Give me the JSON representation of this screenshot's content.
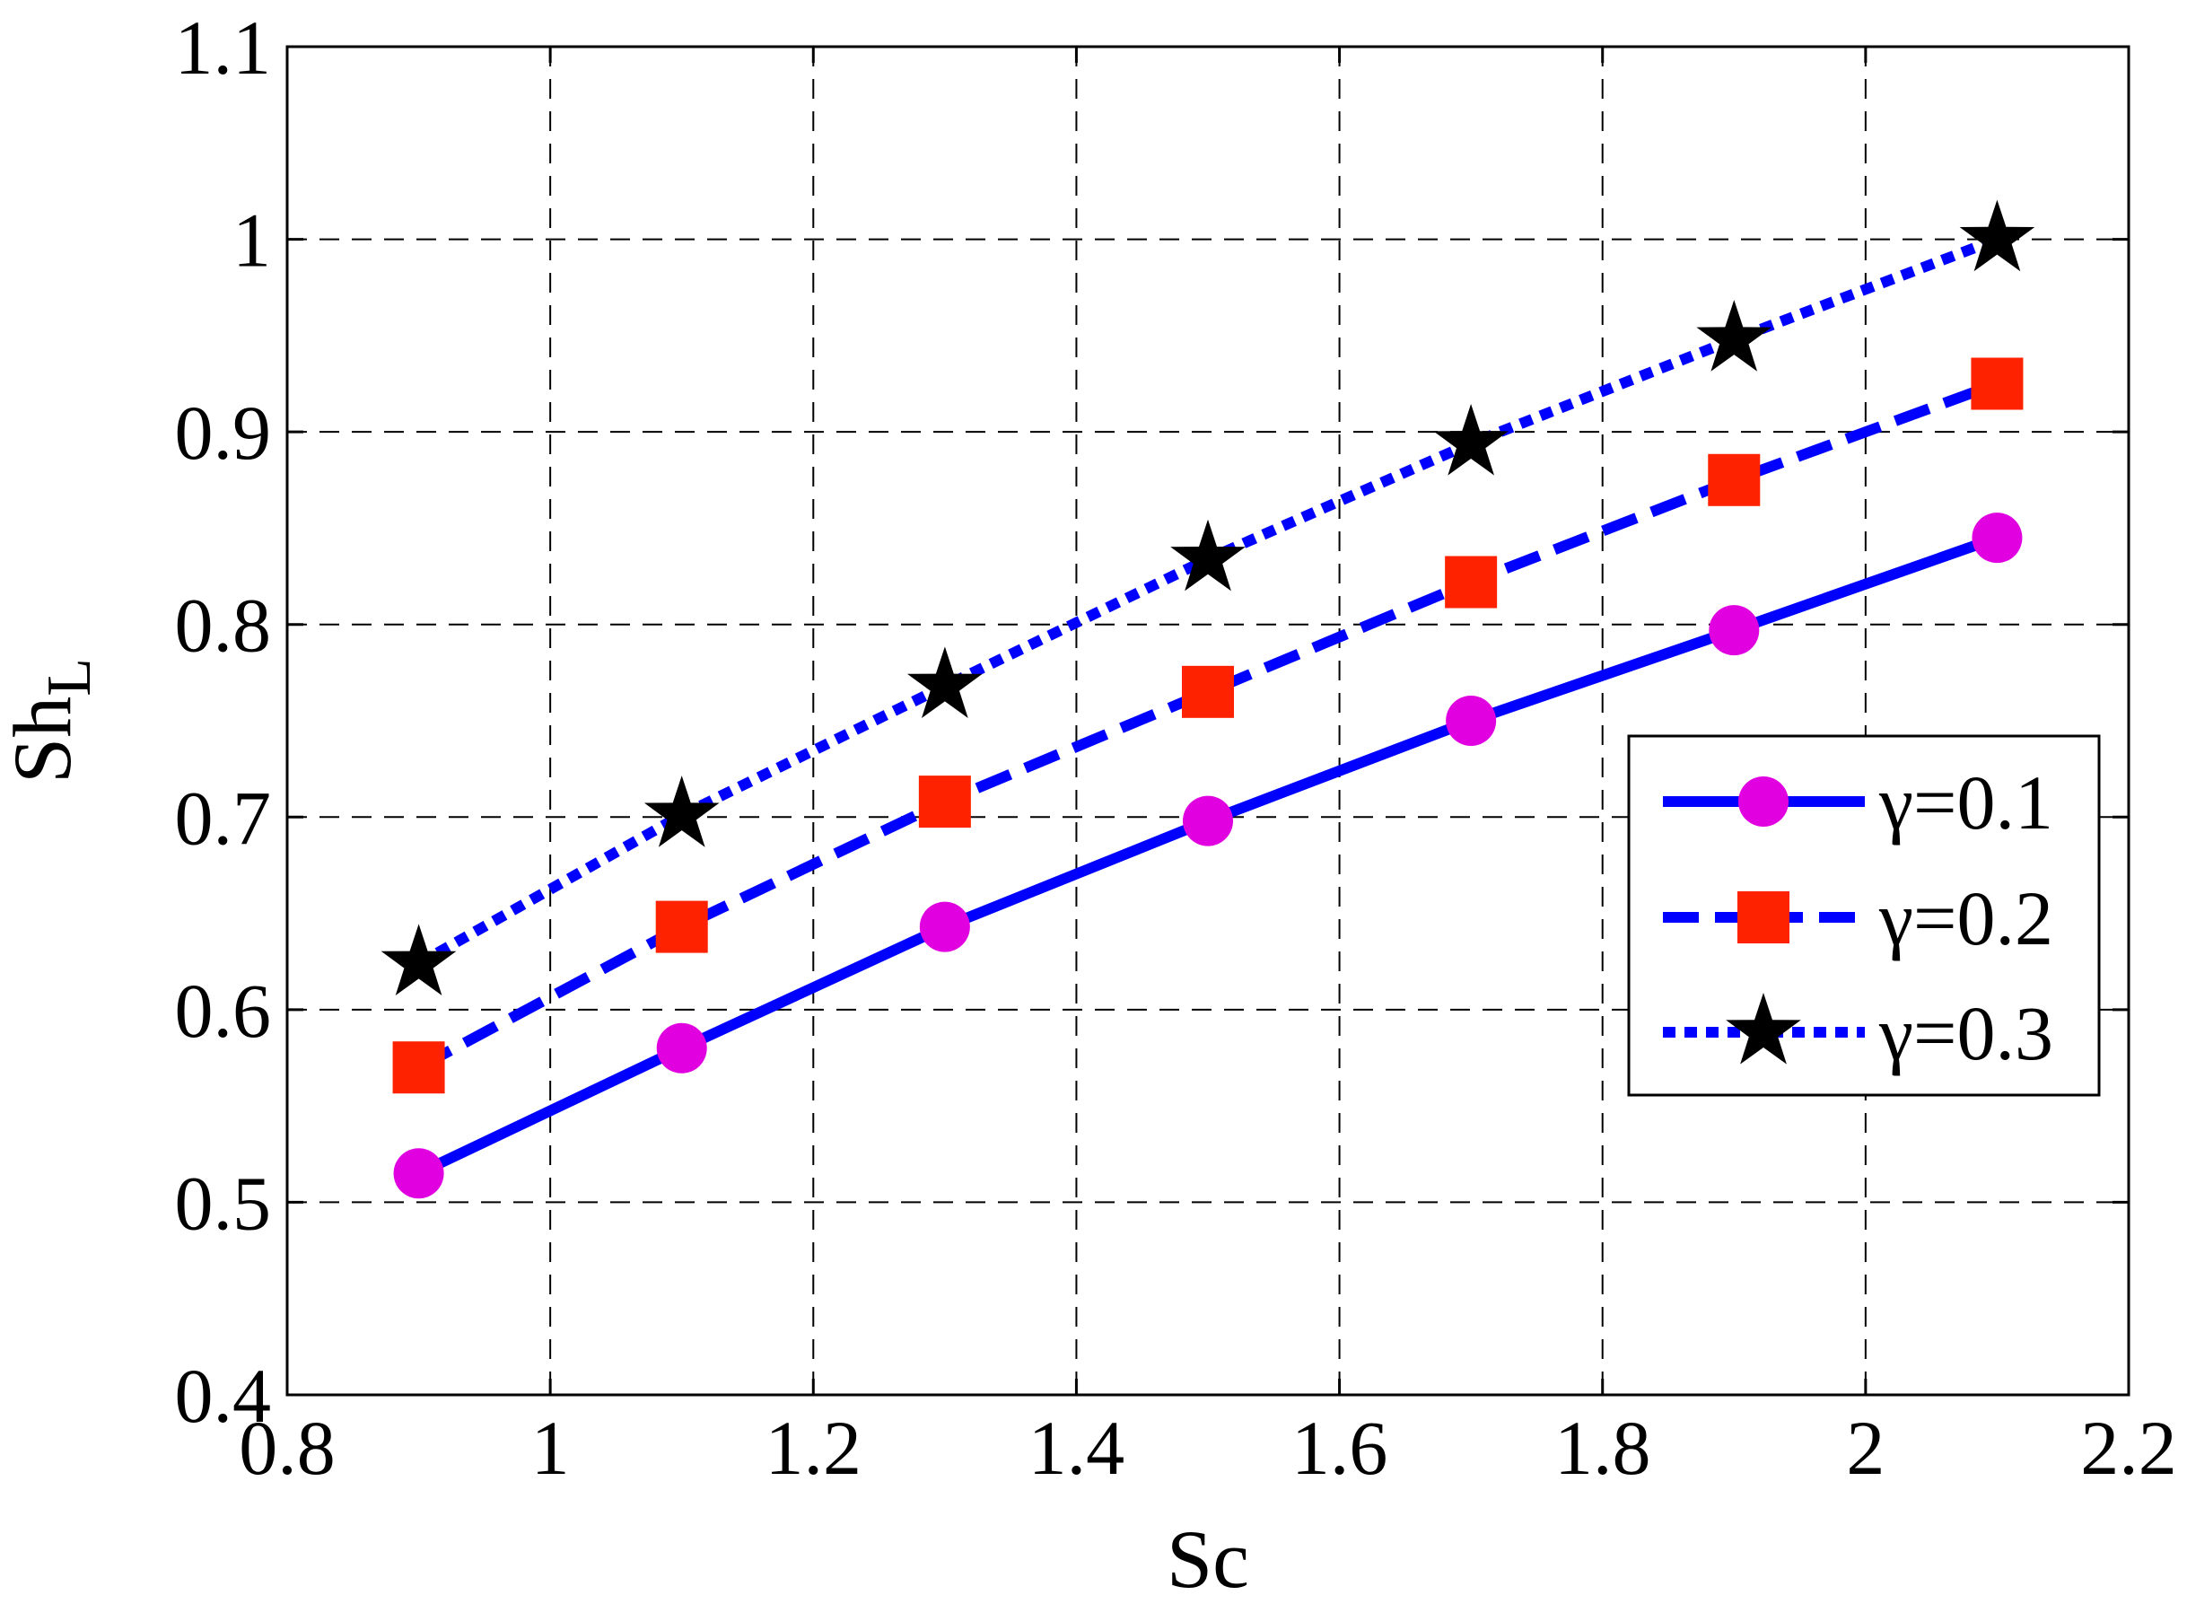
{
  "chart_data": {
    "type": "line",
    "xlabel": "Sc",
    "ylabel": {
      "main": "Sh",
      "sub": "L"
    },
    "xlim": [
      0.8,
      2.2
    ],
    "ylim": [
      0.4,
      1.1
    ],
    "xticks": [
      "0.8",
      "1",
      "1.2",
      "1.4",
      "1.6",
      "1.8",
      "2",
      "2.2"
    ],
    "yticks": [
      "0.4",
      "0.5",
      "0.6",
      "0.7",
      "0.8",
      "0.9",
      "1",
      "1.1"
    ],
    "grid": true,
    "legend_position": "right",
    "x": [
      0.9,
      1.1,
      1.3,
      1.5,
      1.7,
      1.9,
      2.1
    ],
    "series": [
      {
        "name": "γ=0.1",
        "values": [
          0.515,
          0.58,
          0.643,
          0.698,
          0.75,
          0.797,
          0.845
        ],
        "line_style": "solid",
        "line_color": "#0000ff",
        "marker": "circle",
        "marker_color": "#e000e0"
      },
      {
        "name": "γ=0.2",
        "values": [
          0.57,
          0.643,
          0.708,
          0.765,
          0.822,
          0.875,
          0.925
        ],
        "line_style": "dashed",
        "line_color": "#0000ff",
        "marker": "square",
        "marker_color": "#ff2200"
      },
      {
        "name": "γ=0.3",
        "values": [
          0.624,
          0.701,
          0.768,
          0.834,
          0.894,
          0.948,
          1.0
        ],
        "line_style": "dotted",
        "line_color": "#0000ff",
        "marker": "star",
        "marker_color": "#000000"
      }
    ]
  }
}
